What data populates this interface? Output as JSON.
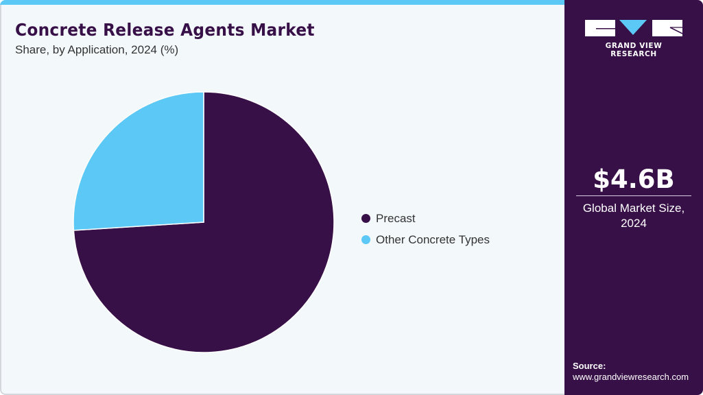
{
  "header": {
    "title": "Concrete Release Agents Market",
    "subtitle": "Share, by Application, 2024 (%)"
  },
  "colors": {
    "accent_bar": "#5bc8f5",
    "primary": "#381048",
    "secondary": "#5bc8f5",
    "background": "#f3f8fb"
  },
  "legend": {
    "items": [
      {
        "label": "Precast",
        "color": "#381048"
      },
      {
        "label": "Other Concrete Types",
        "color": "#5bc8f5"
      }
    ]
  },
  "sidebar": {
    "logo_text": "GRAND VIEW RESEARCH",
    "kpi_value": "$4.6B",
    "kpi_label_line1": "Global Market Size,",
    "kpi_label_line2": "2024",
    "source_label": "Source:",
    "source_url": "www.grandviewresearch.com"
  },
  "chart_data": {
    "type": "pie",
    "title": "Concrete Release Agents Market",
    "subtitle": "Share, by Application, 2024 (%)",
    "categories": [
      "Precast",
      "Other Concrete Types"
    ],
    "values": [
      74,
      26
    ],
    "colors": [
      "#381048",
      "#5bc8f5"
    ],
    "start_angle_deg": 0,
    "direction": "clockwise",
    "legend_position": "right",
    "data_labels": false
  }
}
